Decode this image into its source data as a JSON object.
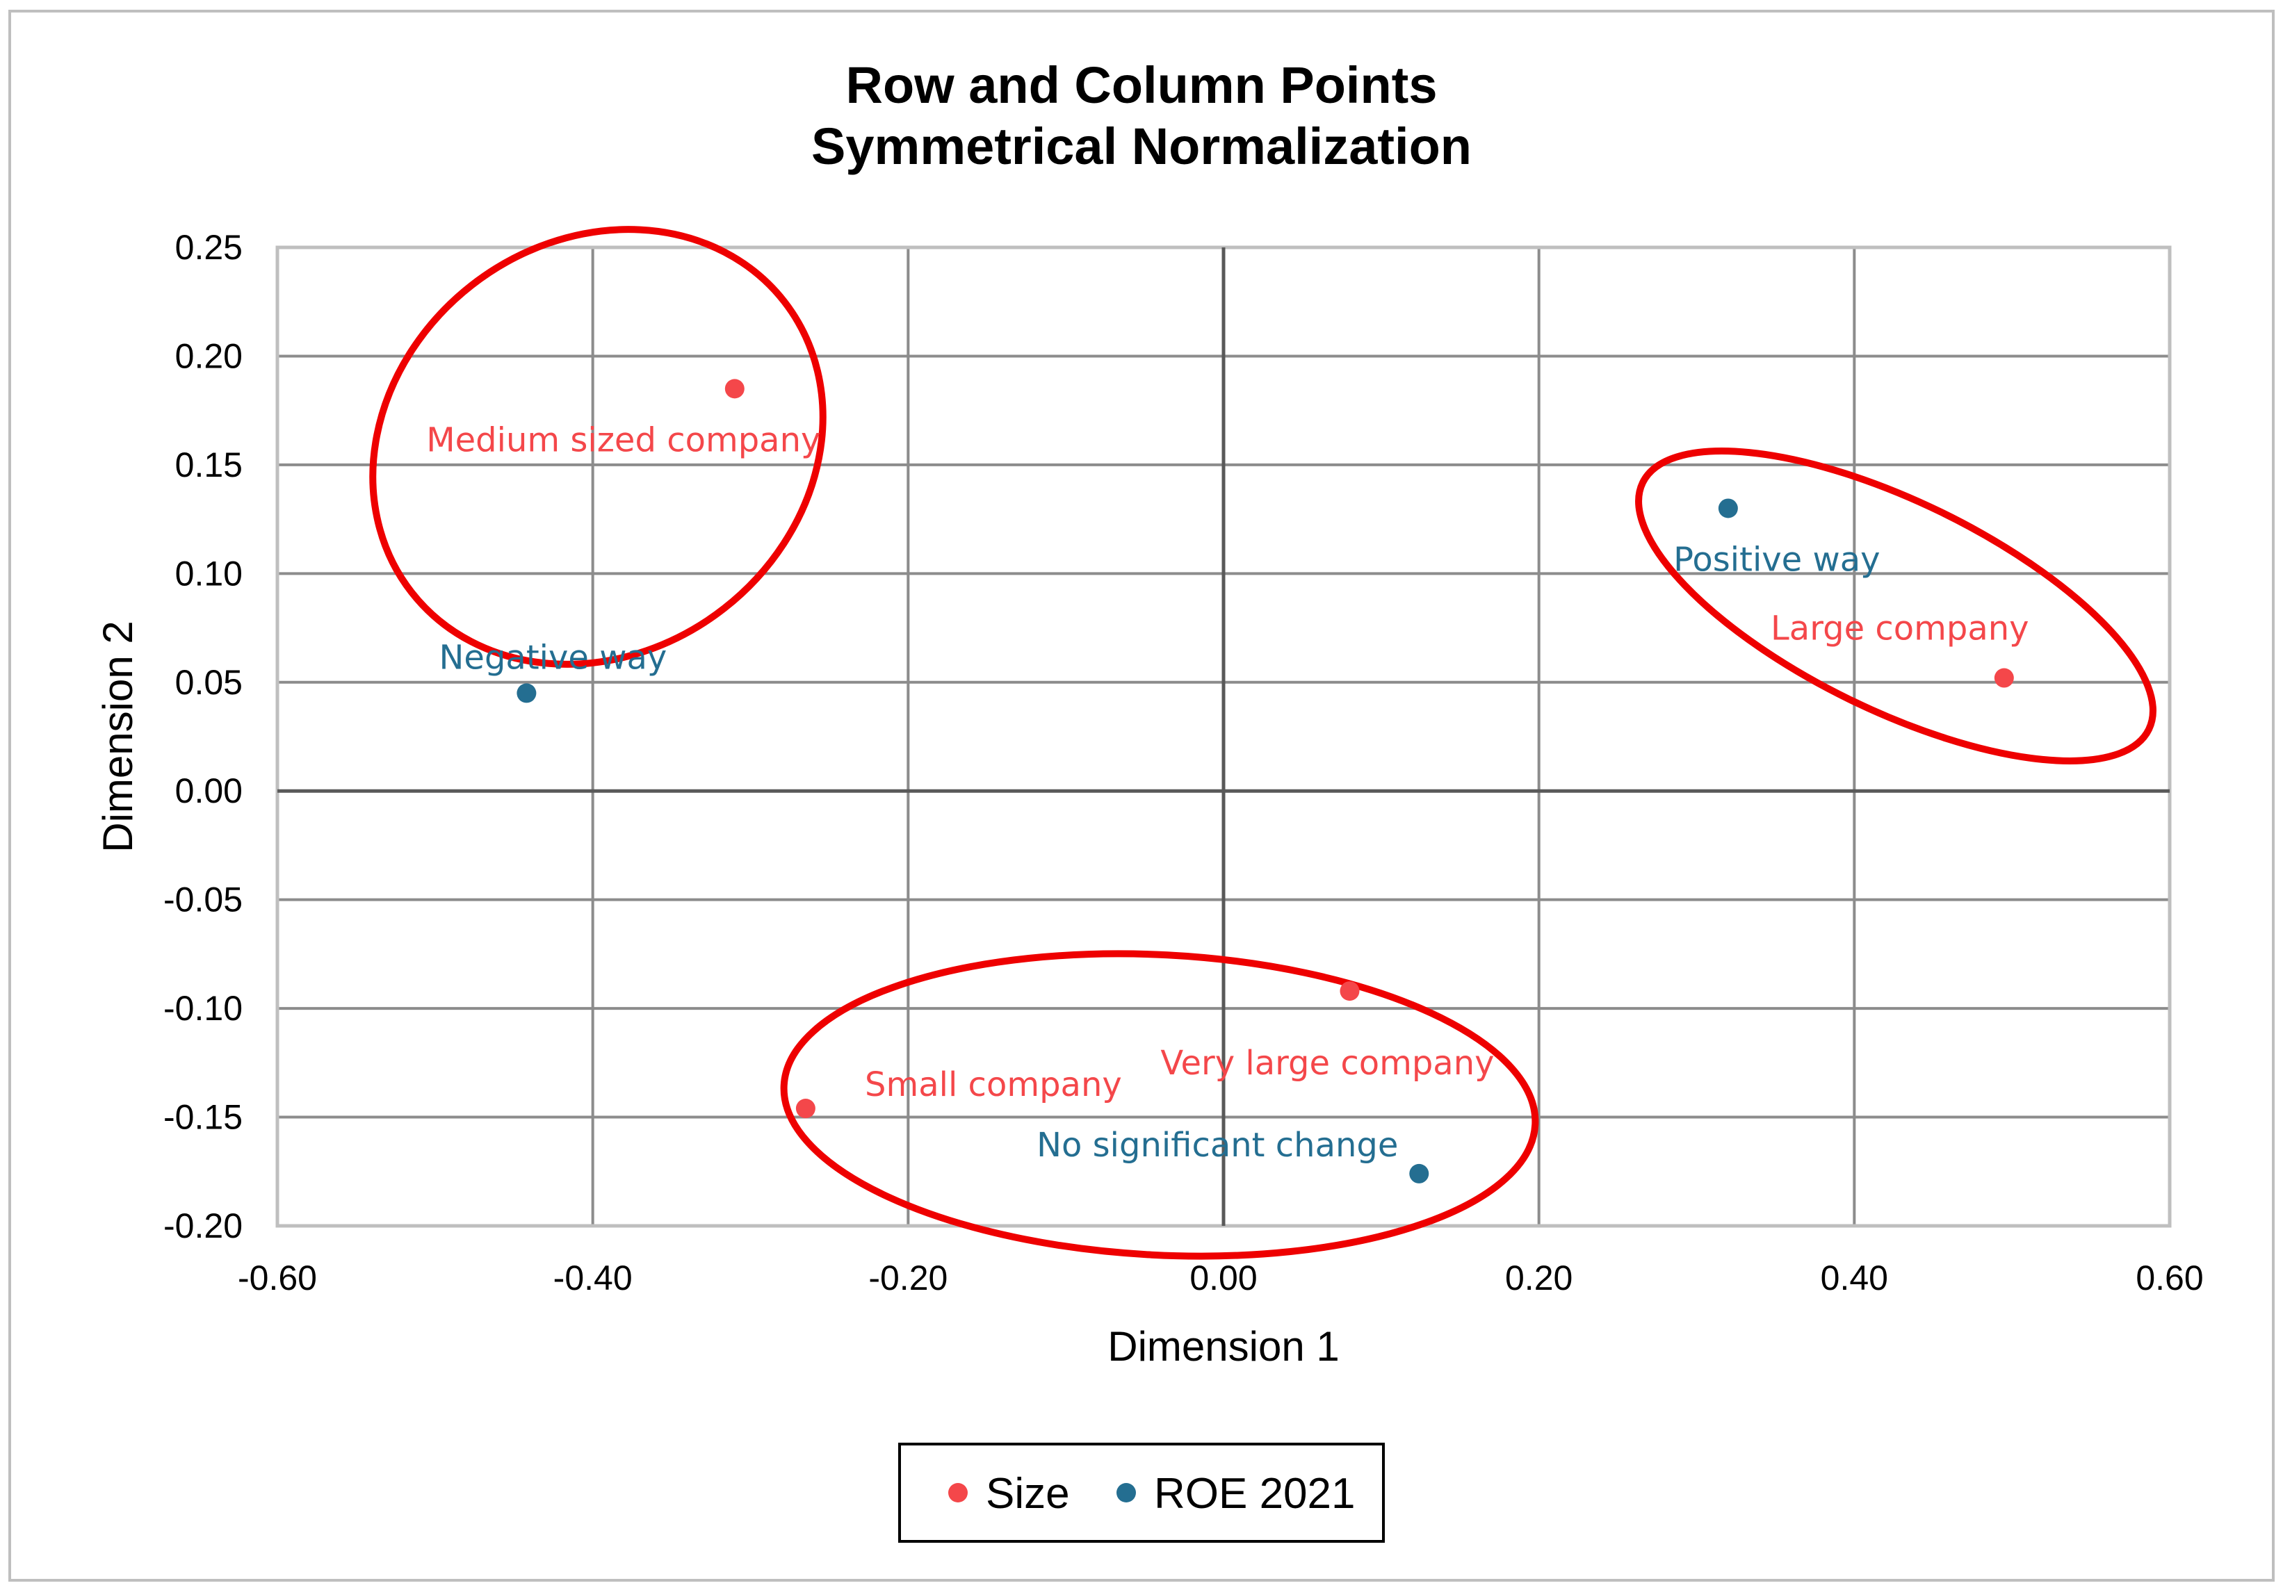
{
  "chart_data": {
    "type": "scatter",
    "title": "Row and Column Points",
    "subtitle": "Symmetrical Normalization",
    "xlabel": "Dimension 1",
    "ylabel": "Dimension 2",
    "xlim": [
      -0.6,
      0.6
    ],
    "ylim": [
      -0.2,
      0.25
    ],
    "x_ticks": [
      "-0.60",
      "-0.40",
      "-0.20",
      "0.00",
      "0.20",
      "0.40",
      "0.60"
    ],
    "y_ticks": [
      "0.25",
      "0.20",
      "0.15",
      "0.10",
      "0.05",
      "0.00",
      "-0.05",
      "-0.10",
      "-0.15",
      "-0.20"
    ],
    "grid": true,
    "legend_position": "bottom",
    "series": [
      {
        "name": "Size",
        "color": "#f4474a",
        "points": [
          {
            "label": "Medium sized company",
            "x": -0.31,
            "y": 0.185
          },
          {
            "label": "Large company",
            "x": 0.495,
            "y": 0.052
          },
          {
            "label": "Very large company",
            "x": 0.08,
            "y": -0.092
          },
          {
            "label": "Small company",
            "x": -0.265,
            "y": -0.146
          }
        ]
      },
      {
        "name": "ROE 2021",
        "color": "#246e91",
        "points": [
          {
            "label": "Negative way",
            "x": -0.442,
            "y": 0.045
          },
          {
            "label": "Positive way",
            "x": 0.32,
            "y": 0.13
          },
          {
            "label": "No significant change",
            "x": 0.124,
            "y": -0.176
          }
        ]
      }
    ],
    "annotations": {
      "cluster_ellipse_color": "#ee0000",
      "cluster_count": 3
    }
  }
}
